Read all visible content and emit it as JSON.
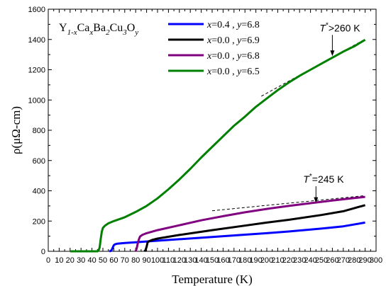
{
  "chart_data": {
    "type": "line",
    "formula": {
      "parts": [
        {
          "text": "Y",
          "sub": false
        },
        {
          "text": "1-x",
          "sub": true
        },
        {
          "text": "Ca",
          "sub": false
        },
        {
          "text": "x",
          "sub": true
        },
        {
          "text": "Ba",
          "sub": false
        },
        {
          "text": "2",
          "sub": true
        },
        {
          "text": "Cu",
          "sub": false
        },
        {
          "text": "3",
          "sub": true
        },
        {
          "text": "O",
          "sub": false
        },
        {
          "text": "y",
          "sub": true
        }
      ]
    },
    "xlabel": "Temperature (K)",
    "ylabel": "ρ(μΩ-cm)",
    "xlim": [
      0,
      300
    ],
    "ylim": [
      0,
      1600
    ],
    "xticks": [
      "0",
      "10",
      "20",
      "30",
      "40",
      "50",
      "60",
      "70",
      "80",
      "90",
      "100",
      "110",
      "120",
      "130",
      "140",
      "150",
      "160",
      "170",
      "180",
      "190",
      "200",
      "210",
      "220",
      "230",
      "240",
      "250",
      "260",
      "270",
      "280",
      "290",
      "300"
    ],
    "yticks": [
      "0",
      "200",
      "400",
      "600",
      "800",
      "1000",
      "1200",
      "1400",
      "1600"
    ],
    "legend_position": "top",
    "series": [
      {
        "name": "x=0.4 , y=6.8",
        "x_val": "0.4",
        "y_val": "6.8",
        "color": "#0000ff",
        "points": [
          [
            56,
            0
          ],
          [
            57,
            2
          ],
          [
            58,
            8
          ],
          [
            59,
            25
          ],
          [
            60,
            40
          ],
          [
            61,
            46
          ],
          [
            63,
            50
          ],
          [
            70,
            55
          ],
          [
            80,
            60
          ],
          [
            100,
            70
          ],
          [
            120,
            80
          ],
          [
            150,
            95
          ],
          [
            180,
            110
          ],
          [
            200,
            120
          ],
          [
            220,
            131
          ],
          [
            250,
            150
          ],
          [
            270,
            165
          ],
          [
            290,
            190
          ]
        ]
      },
      {
        "name": "x=0.0 , y=6.9",
        "x_val": "0.0",
        "y_val": "6.9",
        "color": "#000000",
        "points": [
          [
            88,
            0
          ],
          [
            89,
            8
          ],
          [
            90,
            30
          ],
          [
            91,
            60
          ],
          [
            92,
            66
          ],
          [
            95,
            75
          ],
          [
            100,
            84
          ],
          [
            120,
            108
          ],
          [
            150,
            140
          ],
          [
            180,
            170
          ],
          [
            200,
            190
          ],
          [
            220,
            208
          ],
          [
            250,
            240
          ],
          [
            270,
            265
          ],
          [
            290,
            305
          ]
        ]
      },
      {
        "name": "x=0.0 , y=6.8",
        "x_val": "0.0",
        "y_val": "6.8",
        "color": "#800080",
        "points": [
          [
            80,
            0
          ],
          [
            81,
            20
          ],
          [
            82,
            55
          ],
          [
            83,
            80
          ],
          [
            84,
            98
          ],
          [
            86,
            108
          ],
          [
            90,
            120
          ],
          [
            100,
            140
          ],
          [
            120,
            172
          ],
          [
            140,
            205
          ],
          [
            160,
            232
          ],
          [
            180,
            258
          ],
          [
            200,
            280
          ],
          [
            220,
            300
          ],
          [
            240,
            318
          ],
          [
            260,
            336
          ],
          [
            280,
            352
          ],
          [
            290,
            360
          ]
        ]
      },
      {
        "name": "x=0.0 , y=6.5",
        "x_val": "0.0",
        "y_val": "6.5",
        "color": "#008000",
        "points": [
          [
            20,
            0
          ],
          [
            45,
            0
          ],
          [
            46,
            5
          ],
          [
            47,
            25
          ],
          [
            48,
            80
          ],
          [
            49,
            130
          ],
          [
            50,
            155
          ],
          [
            52,
            170
          ],
          [
            55,
            185
          ],
          [
            60,
            200
          ],
          [
            70,
            225
          ],
          [
            80,
            260
          ],
          [
            90,
            300
          ],
          [
            100,
            350
          ],
          [
            110,
            410
          ],
          [
            120,
            475
          ],
          [
            130,
            545
          ],
          [
            140,
            620
          ],
          [
            150,
            690
          ],
          [
            160,
            760
          ],
          [
            170,
            830
          ],
          [
            180,
            890
          ],
          [
            190,
            955
          ],
          [
            200,
            1010
          ],
          [
            210,
            1065
          ],
          [
            220,
            1115
          ],
          [
            230,
            1160
          ],
          [
            240,
            1200
          ],
          [
            250,
            1240
          ],
          [
            260,
            1280
          ],
          [
            270,
            1320
          ],
          [
            280,
            1355
          ],
          [
            290,
            1398
          ]
        ]
      }
    ],
    "guides": [
      {
        "x": [
          195,
          290
        ],
        "y": [
          1025,
          1402
        ]
      },
      {
        "x": [
          150,
          290
        ],
        "y": [
          268,
          368
        ]
      }
    ],
    "annotations": [
      {
        "sym": "T",
        "sup": "*",
        "text": ">260 K",
        "arrow_x": 260,
        "arrow_from": 1430,
        "arrow_to": 1290
      },
      {
        "sym": "T",
        "sup": "*",
        "text": "=245 K",
        "arrow_x": 245,
        "arrow_from": 430,
        "arrow_to": 320
      }
    ]
  }
}
